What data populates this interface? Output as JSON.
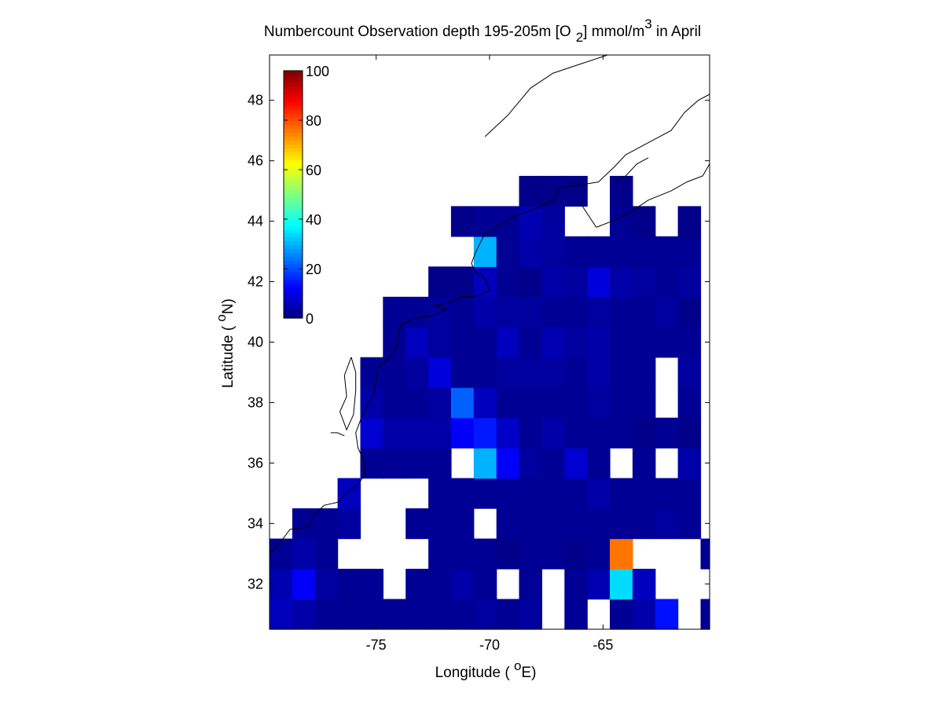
{
  "chart_data": {
    "type": "heatmap",
    "title_parts": {
      "main": "Numbercount Observation depth 195-205m [O",
      "sub": "2",
      "mid": "] mmol/m",
      "sup": "3",
      "end": " in April"
    },
    "xlabel_parts": {
      "pre": "Longitude ( ",
      "sup": "o",
      "post": "E)"
    },
    "ylabel_parts": {
      "pre": "Latitude ( ",
      "sup": "o",
      "post": "N)"
    },
    "xlim": [
      -79.7,
      -60.3
    ],
    "ylim": [
      30.5,
      49.5
    ],
    "x_ticks": [
      -75,
      -70,
      -65
    ],
    "x_tick_labels": [
      "-75",
      "-70",
      "-65"
    ],
    "y_ticks": [
      32,
      34,
      36,
      38,
      40,
      42,
      44,
      46,
      48
    ],
    "y_tick_labels": [
      "32",
      "34",
      "36",
      "38",
      "40",
      "42",
      "44",
      "46",
      "48"
    ],
    "colorbar": {
      "colormap": "jet",
      "range": [
        0,
        100
      ],
      "ticks": [
        0,
        20,
        40,
        60,
        80,
        100
      ],
      "tick_labels": [
        "0",
        "20",
        "40",
        "60",
        "80",
        "100"
      ],
      "placement": "top-left inside"
    },
    "grid": false,
    "cell_size_deg": 1,
    "grid_origin": {
      "lon": -79.7,
      "lat": 30.5
    },
    "legend_note": "Rows from south (30.5-31.5N) to north; cells span 1 degree lon; null = no data",
    "rows": [
      [
        6,
        4,
        2,
        2,
        2,
        2,
        2,
        2,
        2,
        3,
        2,
        3,
        null,
        2,
        null,
        2,
        4,
        14,
        null,
        2,
        null,
        null,
        null,
        null,
        null
      ],
      [
        5,
        12,
        3,
        2,
        2,
        null,
        2,
        2,
        4,
        2,
        null,
        2,
        null,
        2,
        5,
        34,
        6,
        null,
        null,
        null,
        null,
        null,
        null,
        null,
        null
      ],
      [
        2,
        4,
        2,
        null,
        null,
        null,
        null,
        2,
        2,
        2,
        1,
        2,
        2,
        1,
        2,
        76,
        null,
        null,
        null,
        2,
        null,
        null,
        null,
        null,
        null
      ],
      [
        null,
        2,
        2,
        3,
        null,
        null,
        2,
        2,
        2,
        null,
        2,
        2,
        2,
        2,
        2,
        2,
        2,
        3,
        2,
        null,
        null,
        null,
        null,
        null,
        null
      ],
      [
        null,
        null,
        null,
        6,
        null,
        null,
        null,
        2,
        2,
        2,
        2,
        2,
        2,
        2,
        4,
        2,
        2,
        2,
        2,
        null,
        null,
        null,
        null,
        null,
        null
      ],
      [
        null,
        null,
        null,
        null,
        2,
        2,
        2,
        2,
        null,
        30,
        12,
        3,
        2,
        8,
        2,
        null,
        2,
        null,
        4,
        null,
        null,
        null,
        null,
        null,
        null
      ],
      [
        null,
        null,
        null,
        null,
        8,
        4,
        4,
        4,
        12,
        15,
        7,
        2,
        4,
        2,
        2,
        2,
        1,
        2,
        1,
        null,
        null,
        null,
        null,
        null,
        null
      ],
      [
        null,
        null,
        null,
        null,
        4,
        2,
        2,
        3,
        22,
        6,
        2,
        2,
        2,
        2,
        3,
        2,
        2,
        null,
        2,
        null,
        null,
        null,
        null,
        null,
        null
      ],
      [
        null,
        null,
        null,
        null,
        2,
        2,
        3,
        9,
        2,
        2,
        3,
        3,
        3,
        2,
        4,
        2,
        2,
        null,
        3,
        null,
        null,
        null,
        null,
        null,
        null
      ],
      [
        null,
        null,
        null,
        null,
        null,
        2,
        6,
        3,
        2,
        2,
        6,
        2,
        5,
        3,
        4,
        2,
        2,
        2,
        2,
        null,
        null,
        null,
        null,
        null,
        null
      ],
      [
        null,
        null,
        null,
        null,
        null,
        2,
        2,
        3,
        2,
        4,
        3,
        3,
        2,
        2,
        3,
        2,
        2,
        3,
        1,
        null,
        null,
        null,
        null,
        null,
        null
      ],
      [
        null,
        null,
        null,
        null,
        null,
        null,
        null,
        1,
        1,
        6,
        2,
        1,
        4,
        3,
        9,
        4,
        3,
        2,
        3,
        null,
        null,
        null,
        null,
        null,
        null
      ],
      [
        null,
        null,
        null,
        null,
        null,
        null,
        null,
        null,
        null,
        30,
        2,
        4,
        3,
        2,
        2,
        2,
        2,
        2,
        2,
        null,
        null,
        null,
        null,
        null,
        null
      ],
      [
        null,
        null,
        null,
        null,
        null,
        null,
        null,
        null,
        1,
        2,
        2,
        5,
        3,
        null,
        null,
        2,
        1,
        null,
        1,
        null,
        null,
        null,
        null,
        null,
        null
      ],
      [
        null,
        null,
        null,
        null,
        null,
        null,
        null,
        null,
        null,
        null,
        null,
        1,
        1,
        1,
        null,
        1,
        null,
        null,
        null,
        null,
        null,
        null,
        null,
        null,
        null
      ]
    ]
  }
}
